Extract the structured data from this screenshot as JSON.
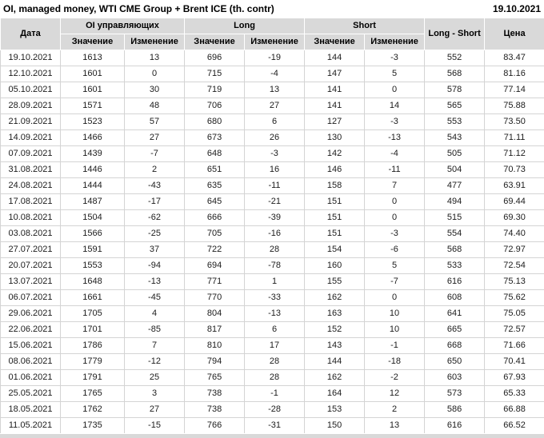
{
  "header": {
    "title": "OI, managed money, WTI CME Group + Brent ICE (th. contr)",
    "report_date": "19.10.2021"
  },
  "chart_data": {
    "type": "table",
    "title": "OI, managed money, WTI CME Group + Brent ICE (th. contr)",
    "report_date": "19.10.2021",
    "column_groups": [
      "Дата",
      "OI управляющих",
      "Long",
      "Short",
      "Long - Short",
      "Цена"
    ],
    "sub_headers": [
      "Значение",
      "Изменение"
    ],
    "colors": {
      "positive": "#009500",
      "negative": "#dd0000",
      "header_bg": "#d9d9d9",
      "grid": "#d4d4d4"
    },
    "rows": [
      {
        "date": "19.10.2021",
        "oi_value": "1613",
        "oi_change": "13",
        "oi_change_dir": "pos",
        "long_value": "696",
        "long_change": "-19",
        "long_change_dir": "neg",
        "short_value": "144",
        "short_change": "-3",
        "short_change_dir": "neg",
        "long_short": "552",
        "price": "83.47"
      },
      {
        "date": "12.10.2021",
        "oi_value": "1601",
        "oi_change": "0",
        "oi_change_dir": "pos",
        "long_value": "715",
        "long_change": "-4",
        "long_change_dir": "neg",
        "short_value": "147",
        "short_change": "5",
        "short_change_dir": "pos",
        "long_short": "568",
        "price": "81.16"
      },
      {
        "date": "05.10.2021",
        "oi_value": "1601",
        "oi_change": "30",
        "oi_change_dir": "pos",
        "long_value": "719",
        "long_change": "13",
        "long_change_dir": "pos",
        "short_value": "141",
        "short_change": "0",
        "short_change_dir": "neg",
        "long_short": "578",
        "price": "77.14"
      },
      {
        "date": "28.09.2021",
        "oi_value": "1571",
        "oi_change": "48",
        "oi_change_dir": "pos",
        "long_value": "706",
        "long_change": "27",
        "long_change_dir": "pos",
        "short_value": "141",
        "short_change": "14",
        "short_change_dir": "pos",
        "long_short": "565",
        "price": "75.88"
      },
      {
        "date": "21.09.2021",
        "oi_value": "1523",
        "oi_change": "57",
        "oi_change_dir": "pos",
        "long_value": "680",
        "long_change": "6",
        "long_change_dir": "pos",
        "short_value": "127",
        "short_change": "-3",
        "short_change_dir": "neg",
        "long_short": "553",
        "price": "73.50"
      },
      {
        "date": "14.09.2021",
        "oi_value": "1466",
        "oi_change": "27",
        "oi_change_dir": "pos",
        "long_value": "673",
        "long_change": "26",
        "long_change_dir": "pos",
        "short_value": "130",
        "short_change": "-13",
        "short_change_dir": "neg",
        "long_short": "543",
        "price": "71.11"
      },
      {
        "date": "07.09.2021",
        "oi_value": "1439",
        "oi_change": "-7",
        "oi_change_dir": "neg",
        "long_value": "648",
        "long_change": "-3",
        "long_change_dir": "neg",
        "short_value": "142",
        "short_change": "-4",
        "short_change_dir": "neg",
        "long_short": "505",
        "price": "71.12"
      },
      {
        "date": "31.08.2021",
        "oi_value": "1446",
        "oi_change": "2",
        "oi_change_dir": "pos",
        "long_value": "651",
        "long_change": "16",
        "long_change_dir": "pos",
        "short_value": "146",
        "short_change": "-11",
        "short_change_dir": "neg",
        "long_short": "504",
        "price": "70.73"
      },
      {
        "date": "24.08.2021",
        "oi_value": "1444",
        "oi_change": "-43",
        "oi_change_dir": "neg",
        "long_value": "635",
        "long_change": "-11",
        "long_change_dir": "neg",
        "short_value": "158",
        "short_change": "7",
        "short_change_dir": "pos",
        "long_short": "477",
        "price": "63.91"
      },
      {
        "date": "17.08.2021",
        "oi_value": "1487",
        "oi_change": "-17",
        "oi_change_dir": "neg",
        "long_value": "645",
        "long_change": "-21",
        "long_change_dir": "neg",
        "short_value": "151",
        "short_change": "0",
        "short_change_dir": "neg",
        "long_short": "494",
        "price": "69.44"
      },
      {
        "date": "10.08.2021",
        "oi_value": "1504",
        "oi_change": "-62",
        "oi_change_dir": "neg",
        "long_value": "666",
        "long_change": "-39",
        "long_change_dir": "neg",
        "short_value": "151",
        "short_change": "0",
        "short_change_dir": "pos",
        "long_short": "515",
        "price": "69.30"
      },
      {
        "date": "03.08.2021",
        "oi_value": "1566",
        "oi_change": "-25",
        "oi_change_dir": "neg",
        "long_value": "705",
        "long_change": "-16",
        "long_change_dir": "neg",
        "short_value": "151",
        "short_change": "-3",
        "short_change_dir": "neg",
        "long_short": "554",
        "price": "74.40"
      },
      {
        "date": "27.07.2021",
        "oi_value": "1591",
        "oi_change": "37",
        "oi_change_dir": "pos",
        "long_value": "722",
        "long_change": "28",
        "long_change_dir": "pos",
        "short_value": "154",
        "short_change": "-6",
        "short_change_dir": "neg",
        "long_short": "568",
        "price": "72.97"
      },
      {
        "date": "20.07.2021",
        "oi_value": "1553",
        "oi_change": "-94",
        "oi_change_dir": "neg",
        "long_value": "694",
        "long_change": "-78",
        "long_change_dir": "neg",
        "short_value": "160",
        "short_change": "5",
        "short_change_dir": "pos",
        "long_short": "533",
        "price": "72.54"
      },
      {
        "date": "13.07.2021",
        "oi_value": "1648",
        "oi_change": "-13",
        "oi_change_dir": "neg",
        "long_value": "771",
        "long_change": "1",
        "long_change_dir": "pos",
        "short_value": "155",
        "short_change": "-7",
        "short_change_dir": "neg",
        "long_short": "616",
        "price": "75.13"
      },
      {
        "date": "06.07.2021",
        "oi_value": "1661",
        "oi_change": "-45",
        "oi_change_dir": "neg",
        "long_value": "770",
        "long_change": "-33",
        "long_change_dir": "neg",
        "short_value": "162",
        "short_change": "0",
        "short_change_dir": "neg",
        "long_short": "608",
        "price": "75.62"
      },
      {
        "date": "29.06.2021",
        "oi_value": "1705",
        "oi_change": "4",
        "oi_change_dir": "pos",
        "long_value": "804",
        "long_change": "-13",
        "long_change_dir": "neg",
        "short_value": "163",
        "short_change": "10",
        "short_change_dir": "pos",
        "long_short": "641",
        "price": "75.05"
      },
      {
        "date": "22.06.2021",
        "oi_value": "1701",
        "oi_change": "-85",
        "oi_change_dir": "neg",
        "long_value": "817",
        "long_change": "6",
        "long_change_dir": "pos",
        "short_value": "152",
        "short_change": "10",
        "short_change_dir": "pos",
        "long_short": "665",
        "price": "72.57"
      },
      {
        "date": "15.06.2021",
        "oi_value": "1786",
        "oi_change": "7",
        "oi_change_dir": "pos",
        "long_value": "810",
        "long_change": "17",
        "long_change_dir": "pos",
        "short_value": "143",
        "short_change": "-1",
        "short_change_dir": "neg",
        "long_short": "668",
        "price": "71.66"
      },
      {
        "date": "08.06.2021",
        "oi_value": "1779",
        "oi_change": "-12",
        "oi_change_dir": "neg",
        "long_value": "794",
        "long_change": "28",
        "long_change_dir": "pos",
        "short_value": "144",
        "short_change": "-18",
        "short_change_dir": "neg",
        "long_short": "650",
        "price": "70.41"
      },
      {
        "date": "01.06.2021",
        "oi_value": "1791",
        "oi_change": "25",
        "oi_change_dir": "pos",
        "long_value": "765",
        "long_change": "28",
        "long_change_dir": "pos",
        "short_value": "162",
        "short_change": "-2",
        "short_change_dir": "neg",
        "long_short": "603",
        "price": "67.93"
      },
      {
        "date": "25.05.2021",
        "oi_value": "1765",
        "oi_change": "3",
        "oi_change_dir": "pos",
        "long_value": "738",
        "long_change": "-1",
        "long_change_dir": "neg",
        "short_value": "164",
        "short_change": "12",
        "short_change_dir": "pos",
        "long_short": "573",
        "price": "65.33"
      },
      {
        "date": "18.05.2021",
        "oi_value": "1762",
        "oi_change": "27",
        "oi_change_dir": "pos",
        "long_value": "738",
        "long_change": "-28",
        "long_change_dir": "neg",
        "short_value": "153",
        "short_change": "2",
        "short_change_dir": "pos",
        "long_short": "586",
        "price": "66.88"
      },
      {
        "date": "11.05.2021",
        "oi_value": "1735",
        "oi_change": "-15",
        "oi_change_dir": "neg",
        "long_value": "766",
        "long_change": "-31",
        "long_change_dir": "neg",
        "short_value": "150",
        "short_change": "13",
        "short_change_dir": "pos",
        "long_short": "616",
        "price": "66.52"
      }
    ]
  }
}
